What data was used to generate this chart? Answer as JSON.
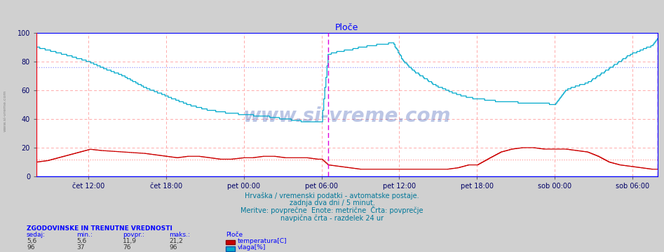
{
  "title": "Ploče",
  "bg_color": "#d0d0d0",
  "plot_bg_color": "#ffffff",
  "text_color": "#0000cc",
  "tick_color": "#000066",
  "temp_color": "#cc0000",
  "hum_color": "#00aacc",
  "vline_color": "#dd00dd",
  "subtitle_color": "#007799",
  "watermark": "www.si-vreme.com",
  "x_labels": [
    "čet 12:00",
    "čet 18:00",
    "pet 00:00",
    "pet 06:00",
    "pet 12:00",
    "pet 18:00",
    "sob 00:00",
    "sob 06:00"
  ],
  "ylim": [
    0,
    100
  ],
  "yticks": [
    0,
    20,
    40,
    60,
    80,
    100
  ],
  "temp_avg": 11.9,
  "hum_avg": 76,
  "caption1": "Hrvaška / vremenski podatki - avtomatske postaje.",
  "caption2": "zadnja dva dni / 5 minut.",
  "caption3": "Meritve: povprečne  Enote: metrične  Črta: povprečje",
  "caption4": "navpična črta - razdelek 24 ur",
  "left_label": "www.si-vreme.com",
  "table_header": "ZGODOVINSKE IN TRENUTNE VREDNOSTI",
  "col_headers": [
    "sedaj:",
    "min.:",
    "povpr.:",
    "maks.:"
  ],
  "station_name": "Ploče",
  "temp_values": [
    "5,6",
    "5,6",
    "11,9",
    "21,2"
  ],
  "hum_values": [
    "96",
    "37",
    "76",
    "96"
  ],
  "legend_temp": "temperatura[C]",
  "legend_hum": "vlaga[%]",
  "N": 576,
  "idx_cet12": 48,
  "idx_cet18": 120,
  "idx_pet00": 192,
  "idx_pet06": 264,
  "idx_pet12": 336,
  "idx_pet18": 408,
  "idx_sob00": 480,
  "idx_sob06": 552,
  "idx_vline": 270,
  "temp_profile_x": [
    0,
    10,
    20,
    30,
    40,
    50,
    48,
    60,
    80,
    100,
    110,
    120,
    130,
    140,
    150,
    160,
    170,
    180,
    192,
    200,
    210,
    220,
    230,
    240,
    250,
    260,
    264,
    270,
    280,
    290,
    300,
    310,
    320,
    330,
    340,
    336,
    350,
    360,
    370,
    380,
    390,
    400,
    408,
    420,
    430,
    440,
    450,
    460,
    470,
    480,
    490,
    500,
    510,
    520,
    530,
    540,
    550,
    560,
    570,
    575
  ],
  "temp_profile_y": [
    10,
    11,
    13,
    15,
    17,
    19,
    19,
    18,
    17,
    16,
    15,
    14,
    13,
    14,
    14,
    13,
    12,
    12,
    13,
    13,
    14,
    14,
    13,
    13,
    13,
    12,
    12,
    8,
    7,
    6,
    5,
    5,
    5,
    5,
    5,
    5,
    5,
    5,
    5,
    5,
    6,
    8,
    8,
    13,
    17,
    19,
    20,
    20,
    19,
    19,
    19,
    18,
    17,
    14,
    10,
    8,
    7,
    6,
    5,
    5
  ],
  "hum_profile_x": [
    0,
    10,
    20,
    30,
    48,
    60,
    80,
    100,
    120,
    140,
    150,
    160,
    170,
    180,
    192,
    210,
    230,
    250,
    264,
    270,
    280,
    290,
    300,
    310,
    320,
    330,
    336,
    340,
    350,
    360,
    370,
    380,
    390,
    400,
    408,
    420,
    430,
    440,
    450,
    460,
    470,
    480,
    490,
    500,
    510,
    520,
    530,
    540,
    550,
    560,
    570,
    575
  ],
  "hum_profile_y": [
    90,
    88,
    86,
    84,
    80,
    76,
    70,
    62,
    56,
    50,
    48,
    46,
    45,
    44,
    43,
    42,
    40,
    38,
    38,
    85,
    87,
    88,
    90,
    91,
    92,
    93,
    85,
    80,
    73,
    68,
    63,
    60,
    57,
    55,
    54,
    53,
    52,
    52,
    51,
    51,
    51,
    50,
    60,
    63,
    65,
    70,
    75,
    80,
    85,
    88,
    91,
    96
  ]
}
